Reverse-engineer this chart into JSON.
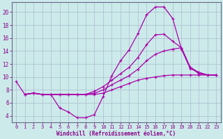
{
  "bg_color": "#cceaea",
  "line_color": "#aa00aa",
  "grid_color": "#aabbcc",
  "xlabel": "Windchill (Refroidissement éolien,°C)",
  "xlabel_color": "#880088",
  "tick_color": "#880088",
  "xlim": [
    -0.5,
    23.5
  ],
  "ylim": [
    3.0,
    21.5
  ],
  "yticks": [
    4,
    6,
    8,
    10,
    12,
    14,
    16,
    18,
    20
  ],
  "xticks": [
    0,
    1,
    2,
    3,
    4,
    5,
    6,
    7,
    8,
    9,
    10,
    11,
    12,
    13,
    14,
    15,
    16,
    17,
    18,
    19,
    20,
    21,
    22,
    23
  ],
  "line1_x": [
    0,
    1,
    2,
    3,
    4,
    5,
    6,
    7,
    8,
    9,
    10,
    11,
    12,
    13,
    14,
    15,
    16,
    17,
    18,
    19,
    20,
    21,
    22,
    23
  ],
  "line1_y": [
    9.3,
    7.3,
    7.5,
    7.3,
    7.3,
    5.2,
    4.6,
    3.7,
    3.7,
    4.2,
    7.0,
    10.2,
    12.5,
    14.2,
    16.7,
    19.6,
    20.8,
    20.8,
    19.0,
    14.3,
    11.3,
    10.7,
    10.3,
    10.3
  ],
  "line2_x": [
    1,
    2,
    3,
    4,
    5,
    6,
    7,
    8,
    9,
    10,
    11,
    12,
    13,
    14,
    15,
    16,
    17,
    18,
    19,
    20,
    21,
    22,
    23
  ],
  "line2_y": [
    7.3,
    7.5,
    7.3,
    7.3,
    7.3,
    7.3,
    7.3,
    7.3,
    7.8,
    8.5,
    9.5,
    10.5,
    11.5,
    13.0,
    15.0,
    16.5,
    16.6,
    15.5,
    14.5,
    11.5,
    10.7,
    10.3,
    10.3
  ],
  "line3_x": [
    1,
    2,
    3,
    4,
    5,
    6,
    7,
    8,
    9,
    10,
    11,
    12,
    13,
    14,
    15,
    16,
    17,
    18,
    19,
    20,
    21,
    22,
    23
  ],
  "line3_y": [
    7.3,
    7.5,
    7.3,
    7.3,
    7.3,
    7.3,
    7.3,
    7.3,
    7.5,
    8.0,
    8.8,
    9.5,
    10.2,
    11.2,
    12.5,
    13.5,
    14.0,
    14.3,
    14.5,
    11.5,
    10.5,
    10.3,
    10.3
  ],
  "line4_x": [
    1,
    2,
    3,
    4,
    5,
    6,
    7,
    8,
    9,
    10,
    11,
    12,
    13,
    14,
    15,
    16,
    17,
    18,
    19,
    20,
    21,
    22,
    23
  ],
  "line4_y": [
    7.3,
    7.5,
    7.3,
    7.3,
    7.3,
    7.3,
    7.3,
    7.3,
    7.3,
    7.5,
    8.0,
    8.5,
    9.0,
    9.5,
    9.8,
    10.0,
    10.2,
    10.3,
    10.3,
    10.3,
    10.3,
    10.3,
    10.3
  ]
}
